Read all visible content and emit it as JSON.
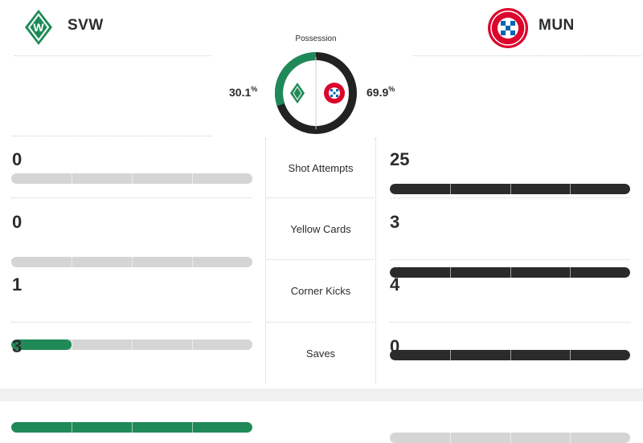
{
  "home": {
    "abbr": "SVW",
    "logo_icon": "werder-bremen-crest-icon",
    "color": "#1f8a58"
  },
  "away": {
    "abbr": "MUN",
    "logo_icon": "bayern-munich-crest-icon",
    "color": "#2b2b2b"
  },
  "possession": {
    "label": "Possession",
    "home_value": "30.1",
    "away_value": "69.9",
    "unit": "%",
    "home_fraction": 0.301
  },
  "stats": [
    {
      "label": "Shot Attempts",
      "home": "0",
      "away": "25",
      "home_fill": 0,
      "away_fill": 1
    },
    {
      "label": "Yellow Cards",
      "home": "0",
      "away": "3",
      "home_fill": 0,
      "away_fill": 1
    },
    {
      "label": "Corner Kicks",
      "home": "1",
      "away": "4",
      "home_fill": 0.25,
      "away_fill": 1
    },
    {
      "label": "Saves",
      "home": "3",
      "away": "0",
      "home_fill": 1,
      "away_fill": 0
    }
  ]
}
